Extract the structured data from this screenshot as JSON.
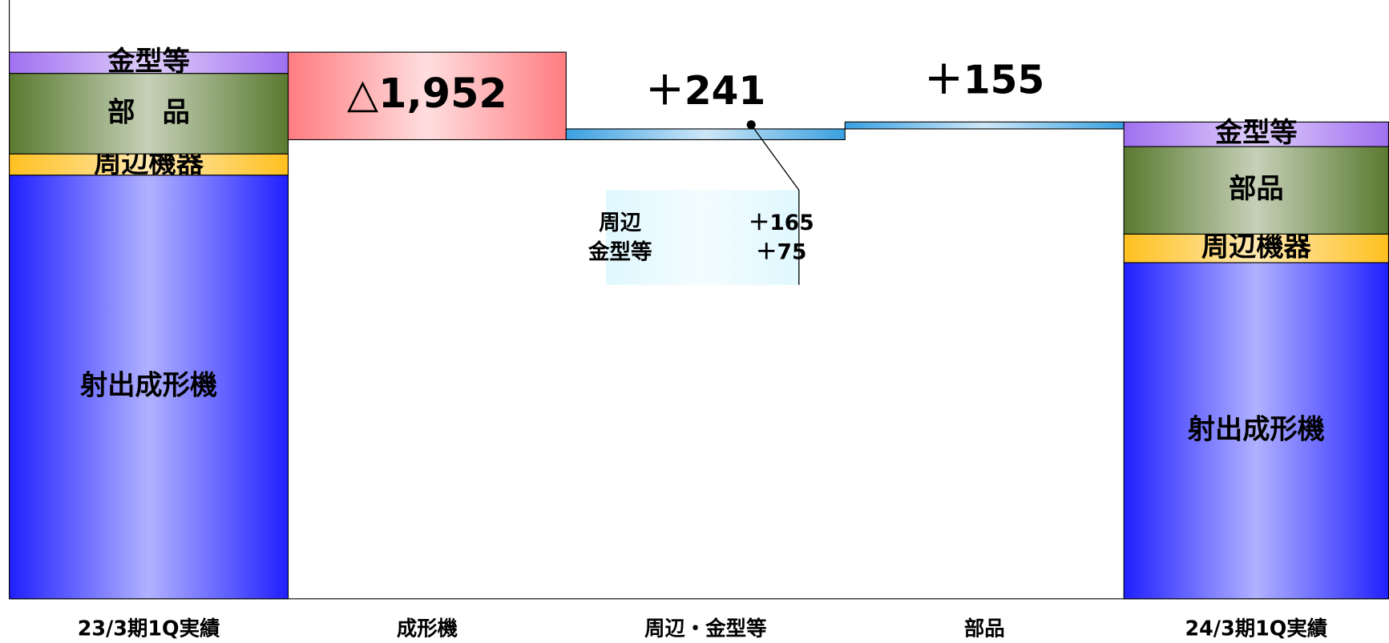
{
  "chart_data": {
    "type": "waterfall",
    "categories": [
      "23/3期1Q実績",
      "成形機",
      "周辺・金型等",
      "部品",
      "24/3期1Q実績"
    ],
    "ylim": [
      0,
      13350
    ],
    "start": {
      "segments": [
        {
          "name": "射出成形機",
          "value": 9446,
          "color": "#2020ff"
        },
        {
          "name": "周辺機器",
          "value": 473,
          "color": "#ffc020"
        },
        {
          "name": "部　品",
          "value": 1795,
          "color": "#5a7a30"
        },
        {
          "name": "金型等",
          "value": 473,
          "color": "#a070f0"
        }
      ]
    },
    "deltas": {
      "values": [
        -1952,
        241,
        155
      ],
      "value_labels": [
        "△1,952",
        "＋241",
        "＋155"
      ],
      "colors": [
        "#ff7c80",
        "#3aa0e0",
        "#3aa0e0"
      ],
      "label_colors": [
        "#ff0000",
        "#000000",
        "#000000"
      ]
    },
    "end": {
      "segments": [
        {
          "name": "射出成形機",
          "value": 7494,
          "color": "#2020ff"
        },
        {
          "name": "周辺機器",
          "value": 638,
          "color": "#ffc020"
        },
        {
          "name": "部品",
          "value": 1950,
          "color": "#5a7a30"
        },
        {
          "name": "金型等",
          "value": 548,
          "color": "#a070f0"
        }
      ]
    },
    "annotation": {
      "items": [
        {
          "label": "周辺",
          "value": 165,
          "value_label": "＋165"
        },
        {
          "label": "金型等",
          "value": 75,
          "value_label": "＋75"
        }
      ]
    }
  }
}
